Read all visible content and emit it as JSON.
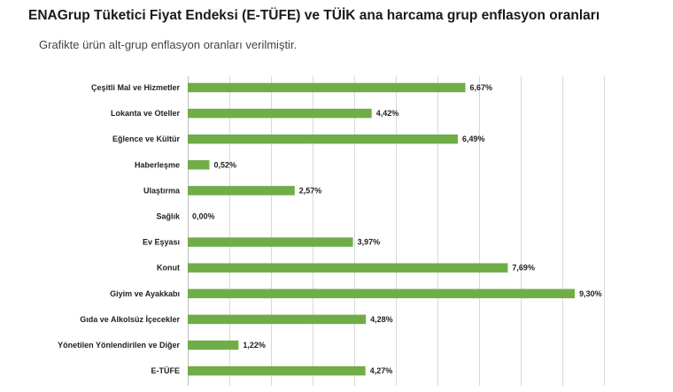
{
  "chart_data": {
    "type": "bar",
    "orientation": "horizontal",
    "title": "ENAGrup Tüketici Fiyat Endeksi (E-TÜFE) ve TÜİK ana harcama grup enflasyon oranları",
    "subtitle": "Grafikte ürün alt-grup enflasyon oranları verilmiştir.",
    "categories": [
      "Çeşitli Mal ve Hizmetler",
      "Lokanta ve Oteller",
      "Eğlence ve Kültür",
      "Haberleşme",
      "Ulaştırma",
      "Sağlık",
      "Ev Eşyası",
      "Konut",
      "Giyim ve Ayakkabı",
      "Gıda ve Alkolsüz İçecekler",
      "Yönetilen Yönlendirilen ve Diğer",
      "E-TÜFE"
    ],
    "values": [
      6.67,
      4.42,
      6.49,
      0.52,
      2.57,
      0.0,
      3.97,
      7.69,
      9.3,
      4.28,
      1.22,
      4.27
    ],
    "value_labels": [
      "6,67%",
      "4,42%",
      "6,49%",
      "0,52%",
      "2,57%",
      "0,00%",
      "3,97%",
      "7,69%",
      "9,30%",
      "4,28%",
      "1,22%",
      "4,27%"
    ],
    "xlim": [
      0,
      10
    ],
    "grid": true,
    "bar_color": "#70ad47",
    "grid_color": "#d9d9d9"
  }
}
